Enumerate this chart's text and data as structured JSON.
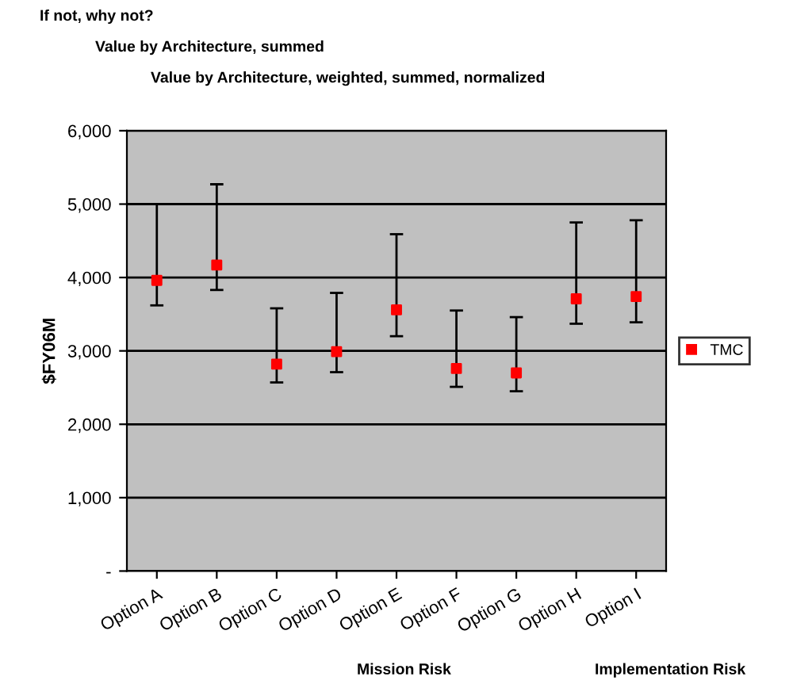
{
  "chart_data": {
    "type": "scatter",
    "ylabel": "$FY06M",
    "categories": [
      "Option A",
      "Option B",
      "Option C",
      "Option D",
      "Option E",
      "Option F",
      "Option G",
      "Option H",
      "Option I"
    ],
    "series": [
      {
        "name": "TMC",
        "color": "#ff0000",
        "values": [
          3960,
          4170,
          2820,
          2990,
          3560,
          2760,
          2700,
          3710,
          3740
        ],
        "errors": [
          [
            3620,
            5000
          ],
          [
            3830,
            5270
          ],
          [
            2570,
            3580
          ],
          [
            2710,
            3790
          ],
          [
            3200,
            4590
          ],
          [
            2510,
            3550
          ],
          [
            2450,
            3460
          ],
          [
            3370,
            4750
          ],
          [
            3390,
            4780
          ]
        ]
      }
    ],
    "ylim": [
      0,
      6000
    ],
    "yticks": [
      {
        "value": 0,
        "label": "-"
      },
      {
        "value": 1000,
        "label": "1,000"
      },
      {
        "value": 2000,
        "label": "2,000"
      },
      {
        "value": 3000,
        "label": "3,000"
      },
      {
        "value": 4000,
        "label": "4,000"
      },
      {
        "value": 5000,
        "label": "5,000"
      },
      {
        "value": 6000,
        "label": "6,000"
      }
    ],
    "grid": "y",
    "legend": "right",
    "marker": "square",
    "annotations": [
      "If not, why not?",
      "Value by Architecture, summed",
      "Value by Architecture, weighted, summed, normalized",
      "Mission Risk",
      "Implementation Risk"
    ]
  }
}
